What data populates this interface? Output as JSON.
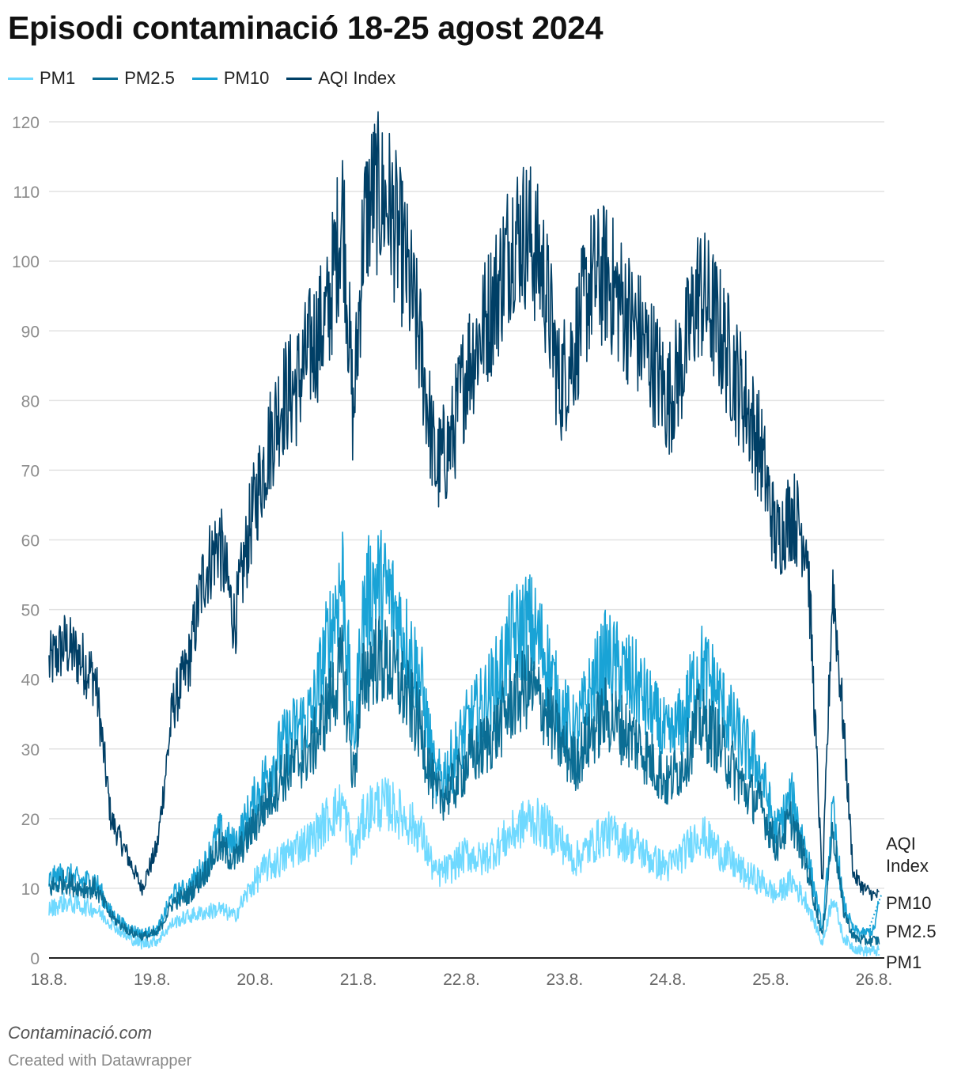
{
  "chart_data": {
    "type": "line",
    "title": "Episodi contaminació 18-25 agost 2024",
    "xlabel": "",
    "ylabel": "",
    "ylim": [
      0,
      120
    ],
    "yticks": [
      0,
      10,
      20,
      30,
      40,
      50,
      60,
      70,
      80,
      90,
      100,
      110,
      120
    ],
    "xlim": [
      0,
      8.1
    ],
    "x_tick_values": [
      0,
      1,
      2,
      3,
      4,
      5,
      6,
      7,
      8
    ],
    "x_tick_labels": [
      "18.8.",
      "19.8.",
      "20.8.",
      "21.8.",
      "22.8.",
      "23.8.",
      "24.8.",
      "25.8.",
      "26.8."
    ],
    "x": [
      0,
      0.15,
      0.3,
      0.45,
      0.6,
      0.75,
      0.9,
      1.05,
      1.2,
      1.35,
      1.5,
      1.65,
      1.8,
      1.95,
      2.1,
      2.25,
      2.4,
      2.55,
      2.7,
      2.85,
      2.95,
      3.05,
      3.15,
      3.3,
      3.45,
      3.6,
      3.75,
      3.9,
      4.05,
      4.2,
      4.35,
      4.5,
      4.65,
      4.8,
      4.95,
      5.1,
      5.25,
      5.4,
      5.55,
      5.7,
      5.85,
      6.0,
      6.15,
      6.3,
      6.45,
      6.6,
      6.75,
      6.9,
      7.05,
      7.2,
      7.35,
      7.5,
      7.6,
      7.7,
      7.8,
      7.9,
      8.0,
      8.05
    ],
    "series": [
      {
        "name": "PM1",
        "color": "#6fd9ff",
        "values": [
          7,
          8,
          7.5,
          7,
          5,
          3,
          2,
          2.5,
          5,
          6,
          6.5,
          7,
          6,
          10,
          13,
          14,
          16,
          17,
          20,
          22,
          15,
          20,
          22,
          22,
          20,
          18,
          12,
          13,
          15,
          14,
          16,
          18,
          20,
          19,
          17,
          14,
          16,
          18,
          17,
          16,
          14,
          13,
          15,
          18,
          16,
          14,
          12,
          11,
          9,
          11,
          8,
          2,
          9,
          3,
          1.5,
          1,
          1,
          1
        ]
      },
      {
        "name": "PM2.5",
        "color": "#0b6d94",
        "values": [
          10,
          11,
          10,
          10,
          6,
          4,
          3,
          3.5,
          8,
          9,
          12,
          16,
          14,
          18,
          22,
          26,
          28,
          30,
          36,
          42,
          26,
          40,
          43,
          42,
          38,
          33,
          23,
          24,
          28,
          30,
          33,
          37,
          39,
          36,
          31,
          28,
          32,
          35,
          33,
          31,
          28,
          25,
          28,
          34,
          32,
          28,
          24,
          22,
          16,
          20,
          13,
          3,
          19,
          7,
          3,
          2.5,
          2.5,
          2.5
        ]
      },
      {
        "name": "PM10",
        "color": "#19a3d6",
        "values": [
          11,
          12,
          11,
          11,
          6.5,
          4.5,
          3.5,
          4,
          9,
          10,
          13,
          18,
          16,
          21,
          26,
          30,
          33,
          35,
          45,
          55,
          30,
          50,
          54,
          52,
          46,
          40,
          25,
          28,
          33,
          36,
          40,
          46,
          48,
          44,
          36,
          32,
          38,
          43,
          41,
          39,
          35,
          31,
          34,
          42,
          39,
          34,
          30,
          27,
          18,
          23,
          15,
          4,
          21,
          8,
          4,
          3.5,
          4,
          8
        ]
      },
      {
        "name": "AQI Index",
        "color": "#003f66",
        "values": [
          42,
          45,
          43,
          40,
          20,
          15,
          10,
          16,
          36,
          42,
          55,
          60,
          48,
          62,
          72,
          80,
          82,
          88,
          92,
          108,
          77,
          105,
          110,
          108,
          100,
          88,
          70,
          74,
          85,
          90,
          96,
          104,
          104,
          98,
          82,
          88,
          97,
          98,
          94,
          90,
          86,
          80,
          86,
          96,
          92,
          86,
          80,
          73,
          60,
          64,
          60,
          10,
          54,
          34,
          12,
          10,
          9,
          9
        ]
      }
    ]
  }
}
